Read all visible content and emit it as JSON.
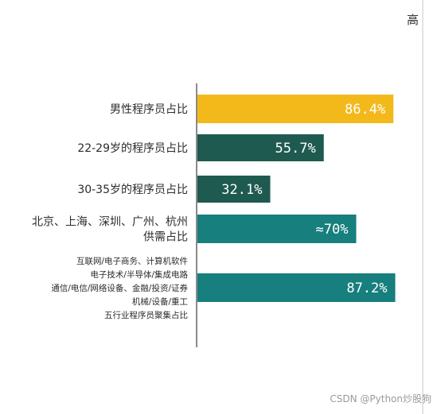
{
  "chart_data": {
    "type": "bar",
    "orientation": "horizontal",
    "categories": [
      [
        "男性程序员占比"
      ],
      [
        "22-29岁的程序员占比"
      ],
      [
        "30-35岁的程序员占比"
      ],
      [
        "北京、上海、深圳、广州、杭州",
        "供需占比"
      ],
      [
        "互联网/电子商务、计算机软件",
        "电子技术/半导体/集成电路",
        "通信/电信/网络设备、金融/投资/证券",
        "机械/设备/重工",
        "五行业程序员聚集占比"
      ]
    ],
    "values": [
      86.4,
      55.7,
      32.1,
      70,
      87.2
    ],
    "value_labels": [
      "86.4%",
      "55.7%",
      "32.1%",
      "≈70%",
      "87.2%"
    ],
    "colors": [
      "#f3b91b",
      "#1f5a50",
      "#1f5a50",
      "#177f7d",
      "#177f7d"
    ],
    "xlim": [
      0,
      100
    ],
    "grid": false,
    "corner_label": "高"
  },
  "watermark": "CSDN @Python炒股狗"
}
